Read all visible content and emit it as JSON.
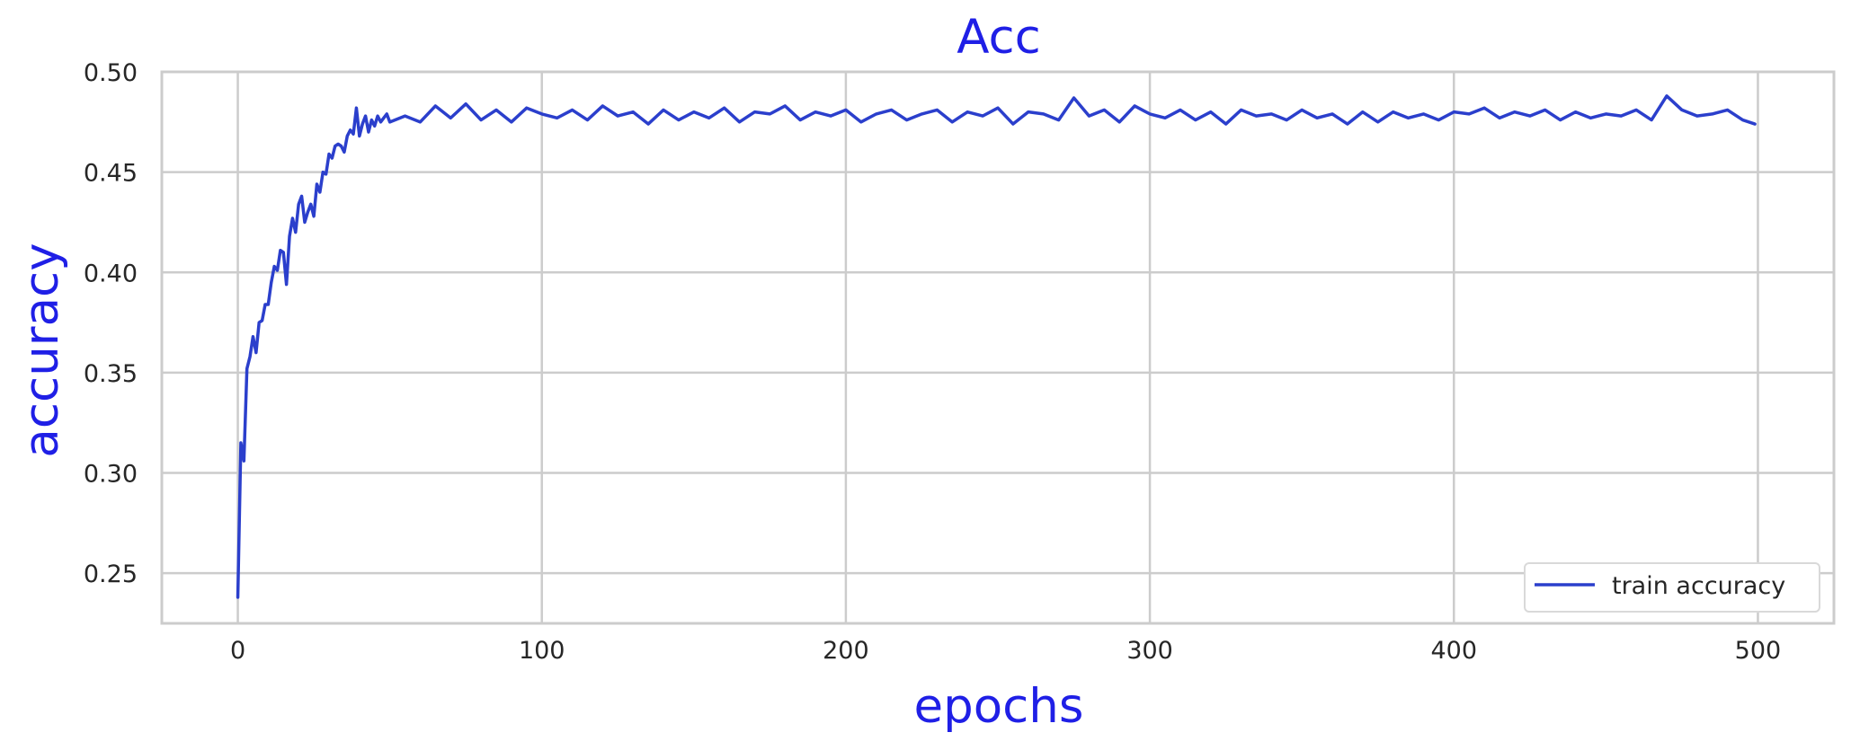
{
  "chart_data": {
    "type": "line",
    "title": "Acc",
    "xlabel": "epochs",
    "ylabel": "accuracy",
    "xlim": [
      -25,
      525
    ],
    "ylim": [
      0.225,
      0.5
    ],
    "xticks": [
      0,
      100,
      200,
      300,
      400,
      500
    ],
    "yticks": [
      0.25,
      0.3,
      0.35,
      0.4,
      0.45,
      0.5
    ],
    "xtick_labels": [
      "0",
      "100",
      "200",
      "300",
      "400",
      "500"
    ],
    "ytick_labels": [
      "0.25",
      "0.30",
      "0.35",
      "0.40",
      "0.45",
      "0.50"
    ],
    "grid": true,
    "legend_position": "lower-right",
    "colors": {
      "series": "#2b3fcc",
      "title": "#1f1fe6",
      "grid": "#cccccc",
      "frame": "#cccccc"
    },
    "series": [
      {
        "name": "train accuracy",
        "x": [
          0,
          1,
          2,
          3,
          4,
          5,
          6,
          7,
          8,
          9,
          10,
          11,
          12,
          13,
          14,
          15,
          16,
          17,
          18,
          19,
          20,
          21,
          22,
          23,
          24,
          25,
          26,
          27,
          28,
          29,
          30,
          31,
          32,
          33,
          34,
          35,
          36,
          37,
          38,
          39,
          40,
          41,
          42,
          43,
          44,
          45,
          46,
          47,
          48,
          49,
          50,
          55,
          60,
          65,
          70,
          75,
          80,
          85,
          90,
          95,
          100,
          105,
          110,
          115,
          120,
          125,
          130,
          135,
          140,
          145,
          150,
          155,
          160,
          165,
          170,
          175,
          180,
          185,
          190,
          195,
          200,
          205,
          210,
          215,
          220,
          225,
          230,
          235,
          240,
          245,
          250,
          255,
          260,
          265,
          270,
          275,
          280,
          285,
          290,
          295,
          300,
          305,
          310,
          315,
          320,
          325,
          330,
          335,
          340,
          345,
          350,
          355,
          360,
          365,
          370,
          375,
          380,
          385,
          390,
          395,
          400,
          405,
          410,
          415,
          420,
          425,
          430,
          435,
          440,
          445,
          450,
          455,
          460,
          465,
          470,
          475,
          480,
          485,
          490,
          495,
          499
        ],
        "values": [
          0.238,
          0.315,
          0.306,
          0.352,
          0.358,
          0.368,
          0.36,
          0.375,
          0.376,
          0.384,
          0.384,
          0.395,
          0.403,
          0.401,
          0.411,
          0.41,
          0.394,
          0.418,
          0.427,
          0.42,
          0.434,
          0.438,
          0.425,
          0.43,
          0.434,
          0.428,
          0.444,
          0.44,
          0.45,
          0.449,
          0.459,
          0.457,
          0.463,
          0.464,
          0.463,
          0.46,
          0.468,
          0.471,
          0.469,
          0.482,
          0.468,
          0.474,
          0.478,
          0.47,
          0.476,
          0.473,
          0.478,
          0.475,
          0.477,
          0.479,
          0.475,
          0.478,
          0.475,
          0.483,
          0.477,
          0.484,
          0.476,
          0.481,
          0.475,
          0.482,
          0.479,
          0.477,
          0.481,
          0.476,
          0.483,
          0.478,
          0.48,
          0.474,
          0.481,
          0.476,
          0.48,
          0.477,
          0.482,
          0.475,
          0.48,
          0.479,
          0.483,
          0.476,
          0.48,
          0.478,
          0.481,
          0.475,
          0.479,
          0.481,
          0.476,
          0.479,
          0.481,
          0.475,
          0.48,
          0.478,
          0.482,
          0.474,
          0.48,
          0.479,
          0.476,
          0.487,
          0.478,
          0.481,
          0.475,
          0.483,
          0.479,
          0.477,
          0.481,
          0.476,
          0.48,
          0.474,
          0.481,
          0.478,
          0.479,
          0.476,
          0.481,
          0.477,
          0.479,
          0.474,
          0.48,
          0.475,
          0.48,
          0.477,
          0.479,
          0.476,
          0.48,
          0.479,
          0.482,
          0.477,
          0.48,
          0.478,
          0.481,
          0.476,
          0.48,
          0.477,
          0.479,
          0.478,
          0.481,
          0.476,
          0.488,
          0.481,
          0.478,
          0.479,
          0.481,
          0.476,
          0.474
        ]
      }
    ]
  }
}
